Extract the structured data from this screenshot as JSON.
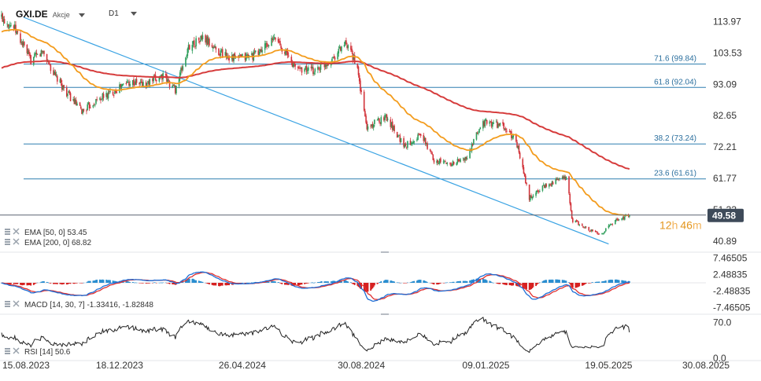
{
  "header": {
    "symbol": "GXI.DE",
    "instrument_type": "Akcje",
    "timeframe": "D1"
  },
  "price_panel": {
    "ylim": [
      38,
      118
    ],
    "y_ticks": [
      "113.97",
      "103.53",
      "93.09",
      "82.65",
      "72.21",
      "61.77",
      "51.33",
      "40.89"
    ],
    "current_price": "49.58",
    "countdown_hours": "12",
    "countdown_h_unit": "h",
    "countdown_minutes": "46",
    "countdown_m_unit": "m",
    "colors": {
      "up_candle": "#2e9e5b",
      "down_candle": "#d2333a",
      "ema50": "#f39c1d",
      "ema200": "#d63c3c",
      "fib": "#2f7fb0",
      "trendline": "#3aa3e3",
      "price_tag": "#3e4a59"
    }
  },
  "fib_levels": [
    {
      "label": "71.6 (99.84)",
      "value": 99.84
    },
    {
      "label": "61.8 (92.04)",
      "value": 92.04
    },
    {
      "label": "38.2 (73.24)",
      "value": 73.24
    },
    {
      "label": "23.6 (61.61)",
      "value": 61.61
    }
  ],
  "trendline": {
    "start": {
      "x": "2023-08-15",
      "y": 118.0
    },
    "end": {
      "x": "2025-05-19",
      "y": 41.5
    }
  },
  "legends": {
    "ema50": "EMA [50, 0] 53.45",
    "ema200": "EMA [200, 0] 68.82",
    "macd": "MACD [14, 30, 7] -1.33416, -1.82848",
    "rsi": "RSI [14] 50.6"
  },
  "macd_panel": {
    "ylim": [
      -8.5,
      8.5
    ],
    "y_ticks": [
      "7.46505",
      "2.48835",
      "-2.48835",
      "-7.46505"
    ],
    "colors": {
      "macd": "#1f6fd6",
      "signal": "#e03030",
      "hist_pos": "#2a8ed0",
      "hist_neg": "#d62020"
    }
  },
  "rsi_panel": {
    "ylim": [
      0,
      80
    ],
    "y_ticks": [
      "70.0",
      "0.0"
    ],
    "color": "#222222"
  },
  "x_axis": {
    "labels": [
      "15.08.2023",
      "18.12.2023",
      "26.04.2024",
      "30.08.2024",
      "09.01.2025",
      "19.05.2025",
      "30.08.2025"
    ]
  },
  "chart_data": {
    "type": "candlestick",
    "symbol": "GXI.DE",
    "series_anchors": [
      {
        "x": "2023-08-15",
        "close": 115.5
      },
      {
        "x": "2023-08-28",
        "close": 112.0
      },
      {
        "x": "2023-09-15",
        "close": 101.0
      },
      {
        "x": "2023-09-28",
        "close": 104.0
      },
      {
        "x": "2023-10-10",
        "close": 96.0
      },
      {
        "x": "2023-10-25",
        "close": 89.5
      },
      {
        "x": "2023-11-08",
        "close": 84.0
      },
      {
        "x": "2023-11-25",
        "close": 88.0
      },
      {
        "x": "2023-12-10",
        "close": 90.5
      },
      {
        "x": "2023-12-28",
        "close": 94.0
      },
      {
        "x": "2024-01-15",
        "close": 93.0
      },
      {
        "x": "2024-02-01",
        "close": 96.0
      },
      {
        "x": "2024-02-15",
        "close": 91.5
      },
      {
        "x": "2024-03-01",
        "close": 106.0
      },
      {
        "x": "2024-03-15",
        "close": 108.5
      },
      {
        "x": "2024-04-01",
        "close": 104.0
      },
      {
        "x": "2024-04-20",
        "close": 101.5
      },
      {
        "x": "2024-05-10",
        "close": 103.0
      },
      {
        "x": "2024-06-01",
        "close": 108.5
      },
      {
        "x": "2024-06-20",
        "close": 99.0
      },
      {
        "x": "2024-07-10",
        "close": 97.5
      },
      {
        "x": "2024-07-28",
        "close": 101.0
      },
      {
        "x": "2024-08-12",
        "close": 106.5
      },
      {
        "x": "2024-08-24",
        "close": 101.0
      },
      {
        "x": "2024-09-05",
        "close": 78.5
      },
      {
        "x": "2024-09-25",
        "close": 82.5
      },
      {
        "x": "2024-10-15",
        "close": 72.5
      },
      {
        "x": "2024-11-01",
        "close": 76.5
      },
      {
        "x": "2024-11-15",
        "close": 68.0
      },
      {
        "x": "2024-12-01",
        "close": 66.5
      },
      {
        "x": "2024-12-20",
        "close": 68.5
      },
      {
        "x": "2025-01-05",
        "close": 80.5
      },
      {
        "x": "2025-01-25",
        "close": 79.5
      },
      {
        "x": "2025-02-10",
        "close": 74.5
      },
      {
        "x": "2025-02-24",
        "close": 55.0
      },
      {
        "x": "2025-03-10",
        "close": 59.0
      },
      {
        "x": "2025-03-25",
        "close": 61.0
      },
      {
        "x": "2025-04-05",
        "close": 62.0
      },
      {
        "x": "2025-04-10",
        "close": 48.0
      },
      {
        "x": "2025-04-25",
        "close": 45.0
      },
      {
        "x": "2025-05-10",
        "close": 43.0
      },
      {
        "x": "2025-05-25",
        "close": 47.5
      },
      {
        "x": "2025-06-10",
        "close": 49.58
      }
    ],
    "ema50_last": 53.45,
    "ema200_last": 68.82,
    "macd_last": -1.33416,
    "macd_signal_last": -1.82848,
    "rsi_last": 50.6,
    "x_ticks": [
      "15.08.2023",
      "18.12.2023",
      "26.04.2024",
      "30.08.2024",
      "09.01.2025",
      "19.05.2025",
      "30.08.2025"
    ]
  }
}
